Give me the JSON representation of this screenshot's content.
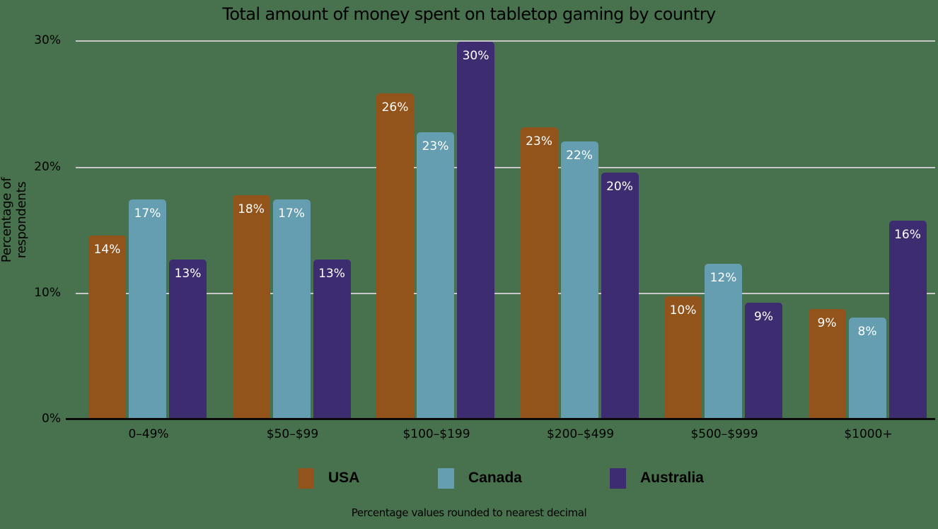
{
  "chart_data": {
    "type": "bar",
    "title": "Total amount of money spent on tabletop gaming by country",
    "xlabel": "",
    "ylabel": "Percentage of respondents",
    "ylim": [
      0,
      30
    ],
    "yticks": [
      "0%",
      "10%",
      "20%",
      "30%"
    ],
    "grid": true,
    "legend_position": "bottom",
    "categories": [
      "0–49%",
      "$50–$99",
      "$100–$199",
      "$200–$499",
      "$500–$999",
      "$1000+"
    ],
    "series": [
      {
        "name": "USA",
        "color": "#93541c",
        "values": [
          14,
          18,
          26,
          23,
          10,
          9
        ],
        "labels": [
          "14%",
          "18%",
          "26%",
          "23%",
          "10%",
          "9%"
        ]
      },
      {
        "name": "Canada",
        "color": "#659eb0",
        "values": [
          17,
          17,
          23,
          22,
          12,
          8
        ],
        "labels": [
          "17%",
          "17%",
          "23%",
          "22%",
          "12%",
          "8%"
        ]
      },
      {
        "name": "Australia",
        "color": "#3d2d70",
        "values": [
          13,
          13,
          30,
          20,
          9,
          16
        ],
        "labels": [
          "13%",
          "13%",
          "30%",
          "20%",
          "9%",
          "16%"
        ]
      }
    ],
    "bar_heights_estimated": [
      [
        14.5,
        17.7,
        25.8,
        23.1,
        9.7,
        8.7
      ],
      [
        17.4,
        17.4,
        22.7,
        22.0,
        12.3,
        8.0
      ],
      [
        12.6,
        12.6,
        29.9,
        19.5,
        9.2,
        15.7
      ]
    ],
    "note": "Percentage values rounded to nearest decimal"
  }
}
